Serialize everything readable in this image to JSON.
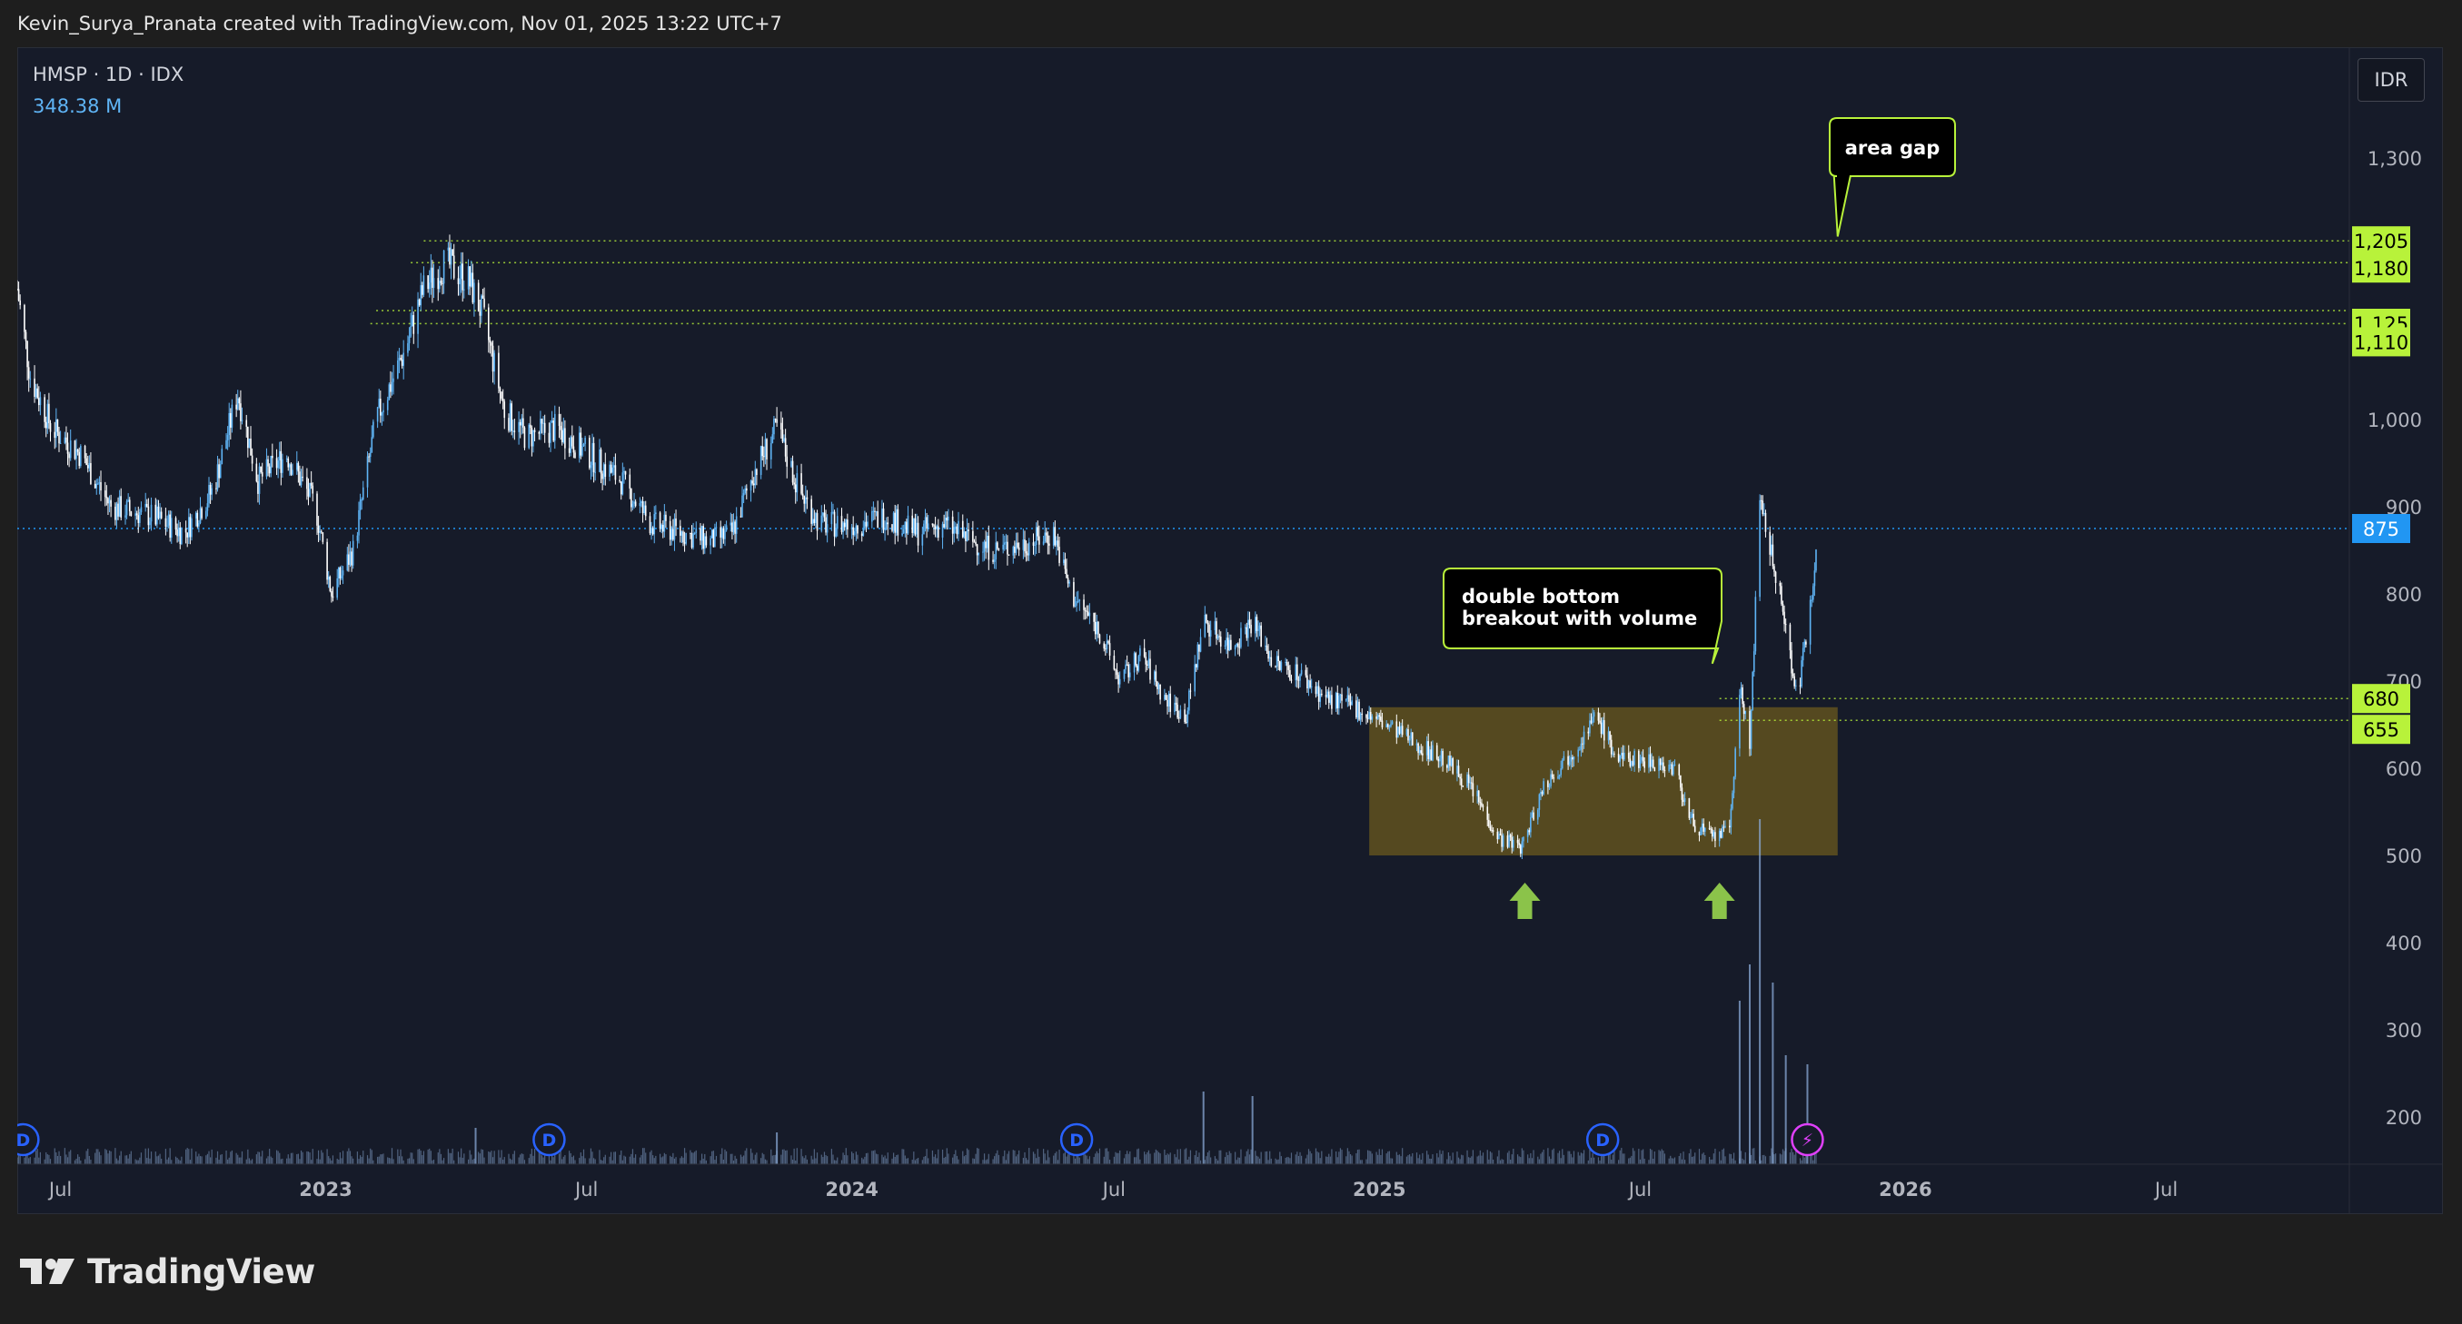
{
  "header": {
    "caption": "Kevin_Surya_Pranata created with TradingView.com, Nov 01, 2025 13:22 UTC+7"
  },
  "legend": {
    "symbol": "HMSP · 1D · IDX",
    "volume": "348.38 M"
  },
  "currency_button": "IDR",
  "footer": {
    "brand": "TradingView",
    "logo_icon": "tradingview-logo-icon"
  },
  "colors": {
    "background": "#161b29",
    "candle": "#5fb4f5",
    "candle_alt": "#ffffff",
    "level_label_bg": "#b8f23a",
    "annotation_border": "#b8f23a",
    "box_fill": "#6b5a1e",
    "last_price": "#2196f3",
    "dividend_marker": "#2962ff",
    "event_marker": "#e040fb"
  },
  "chart_data": {
    "type": "candlestick",
    "symbol": "HMSP",
    "interval": "1D",
    "exchange": "IDX",
    "y_axis": {
      "range": [
        140,
        1420
      ],
      "ticks": [
        "200",
        "300",
        "400",
        "500",
        "600",
        "700",
        "800",
        "900",
        "1,000",
        "1,300"
      ]
    },
    "x_axis": {
      "ticks": [
        {
          "label": "Jul",
          "date": "2022-07-01",
          "bold": false
        },
        {
          "label": "2023",
          "date": "2023-01-01",
          "bold": true
        },
        {
          "label": "Jul",
          "date": "2023-07-01",
          "bold": false
        },
        {
          "label": "2024",
          "date": "2024-01-01",
          "bold": true
        },
        {
          "label": "Jul",
          "date": "2024-07-01",
          "bold": false
        },
        {
          "label": "2025",
          "date": "2025-01-01",
          "bold": true
        },
        {
          "label": "Jul",
          "date": "2025-07-01",
          "bold": false
        },
        {
          "label": "2026",
          "date": "2026-01-01",
          "bold": true
        },
        {
          "label": "Jul",
          "date": "2026-07-01",
          "bold": false
        }
      ]
    },
    "price_path": [
      [
        "2022-06-01",
        1150
      ],
      [
        "2022-06-10",
        1050
      ],
      [
        "2022-06-25",
        990
      ],
      [
        "2022-07-15",
        960
      ],
      [
        "2022-08-05",
        900
      ],
      [
        "2022-09-01",
        890
      ],
      [
        "2022-09-25",
        870
      ],
      [
        "2022-10-15",
        920
      ],
      [
        "2022-11-01",
        1030
      ],
      [
        "2022-11-15",
        930
      ],
      [
        "2022-12-05",
        960
      ],
      [
        "2022-12-25",
        900
      ],
      [
        "2023-01-05",
        800
      ],
      [
        "2023-01-20",
        850
      ],
      [
        "2023-02-05",
        1000
      ],
      [
        "2023-02-25",
        1080
      ],
      [
        "2023-03-10",
        1150
      ],
      [
        "2023-03-25",
        1180
      ],
      [
        "2023-04-10",
        1160
      ],
      [
        "2023-04-20",
        1120
      ],
      [
        "2023-05-05",
        1010
      ],
      [
        "2023-05-20",
        980
      ],
      [
        "2023-06-10",
        990
      ],
      [
        "2023-06-25",
        970
      ],
      [
        "2023-07-10",
        950
      ],
      [
        "2023-07-25",
        930
      ],
      [
        "2023-08-15",
        880
      ],
      [
        "2023-09-05",
        870
      ],
      [
        "2023-09-25",
        860
      ],
      [
        "2023-10-10",
        870
      ],
      [
        "2023-10-25",
        940
      ],
      [
        "2023-11-10",
        990
      ],
      [
        "2023-11-25",
        920
      ],
      [
        "2023-12-10",
        880
      ],
      [
        "2024-01-05",
        880
      ],
      [
        "2024-01-25",
        890
      ],
      [
        "2024-02-15",
        870
      ],
      [
        "2024-03-05",
        880
      ],
      [
        "2024-03-25",
        860
      ],
      [
        "2024-04-10",
        850
      ],
      [
        "2024-05-05",
        860
      ],
      [
        "2024-05-20",
        870
      ],
      [
        "2024-06-01",
        800
      ],
      [
        "2024-06-20",
        760
      ],
      [
        "2024-07-05",
        700
      ],
      [
        "2024-07-20",
        730
      ],
      [
        "2024-08-05",
        680
      ],
      [
        "2024-08-20",
        660
      ],
      [
        "2024-09-01",
        770
      ],
      [
        "2024-09-20",
        740
      ],
      [
        "2024-10-05",
        770
      ],
      [
        "2024-10-20",
        720
      ],
      [
        "2024-11-05",
        710
      ],
      [
        "2024-11-25",
        680
      ],
      [
        "2024-12-15",
        670
      ],
      [
        "2025-01-05",
        650
      ],
      [
        "2025-01-25",
        630
      ],
      [
        "2025-02-15",
        610
      ],
      [
        "2025-03-05",
        580
      ],
      [
        "2025-03-25",
        520
      ],
      [
        "2025-04-10",
        510
      ],
      [
        "2025-04-25",
        580
      ],
      [
        "2025-05-15",
        620
      ],
      [
        "2025-06-01",
        660
      ],
      [
        "2025-06-15",
        610
      ],
      [
        "2025-07-05",
        610
      ],
      [
        "2025-07-25",
        600
      ],
      [
        "2025-08-05",
        540
      ],
      [
        "2025-08-20",
        520
      ],
      [
        "2025-09-01",
        530
      ],
      [
        "2025-09-08",
        690
      ],
      [
        "2025-09-15",
        630
      ],
      [
        "2025-09-22",
        900
      ],
      [
        "2025-10-01",
        840
      ],
      [
        "2025-10-10",
        760
      ],
      [
        "2025-10-18",
        680
      ],
      [
        "2025-10-25",
        760
      ],
      [
        "2025-11-01",
        870
      ]
    ],
    "horizontal_levels": [
      {
        "price": 1205,
        "label": "1,205",
        "start": "2023-03-10"
      },
      {
        "price": 1180,
        "label": "1,180",
        "start": "2023-03-01"
      },
      {
        "price": 1125,
        "label": "1,125",
        "start": "2023-02-05"
      },
      {
        "price": 1110,
        "label": "1,110",
        "start": "2023-02-01"
      },
      {
        "price": 680,
        "label": "680",
        "start": "2025-08-25"
      },
      {
        "price": 655,
        "label": "655",
        "start": "2025-08-25"
      }
    ],
    "last_price": {
      "price": 875,
      "label": "875"
    },
    "zones": [
      {
        "start": "2024-12-25",
        "end": "2025-11-15",
        "low": 500,
        "high": 670
      }
    ],
    "annotations": [
      {
        "lines": [
          "area gap"
        ],
        "anchor_date": "2025-11-15",
        "anchor_price": 1210
      },
      {
        "lines": [
          "double bottom",
          "breakout with volume"
        ],
        "anchor_date": "2025-08-20",
        "anchor_price": 720
      }
    ],
    "arrows": [
      {
        "date": "2025-04-12",
        "direction": "up"
      },
      {
        "date": "2025-08-25",
        "direction": "up"
      }
    ],
    "markers": [
      {
        "type": "dividend",
        "label": "D",
        "date": "2022-06-05"
      },
      {
        "type": "dividend",
        "label": "D",
        "date": "2023-06-05"
      },
      {
        "type": "dividend",
        "label": "D",
        "date": "2024-06-05"
      },
      {
        "type": "dividend",
        "label": "D",
        "date": "2025-06-05"
      },
      {
        "type": "event",
        "label": "⚡",
        "date": "2025-10-25"
      }
    ],
    "volume_spikes": [
      {
        "date": "2025-09-22",
        "volume": 380
      },
      {
        "date": "2025-09-08",
        "volume": 180
      },
      {
        "date": "2025-09-15",
        "volume": 220
      },
      {
        "date": "2025-10-01",
        "volume": 200
      },
      {
        "date": "2025-10-10",
        "volume": 120
      },
      {
        "date": "2025-10-25",
        "volume": 110
      },
      {
        "date": "2024-09-01",
        "volume": 80
      },
      {
        "date": "2024-10-05",
        "volume": 75
      },
      {
        "date": "2023-04-15",
        "volume": 40
      },
      {
        "date": "2023-11-10",
        "volume": 35
      }
    ]
  }
}
